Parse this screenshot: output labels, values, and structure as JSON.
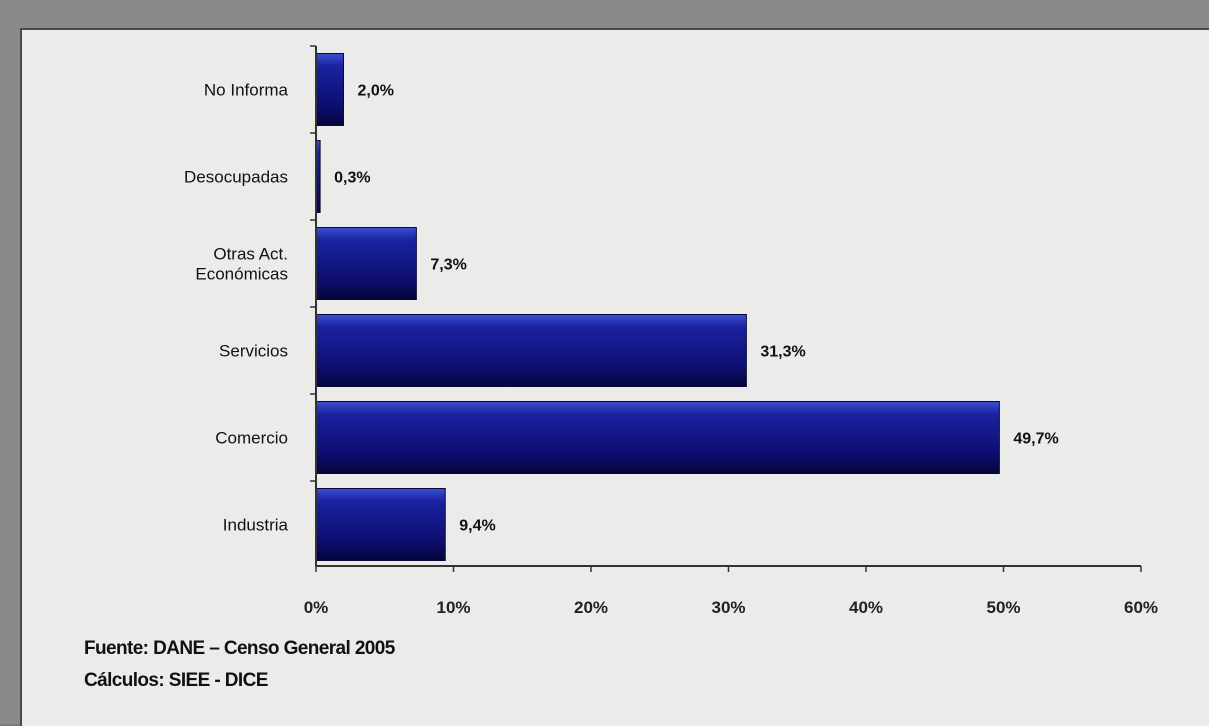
{
  "chart_data": {
    "type": "bar",
    "orientation": "horizontal",
    "categories": [
      "No Informa",
      "Desocupadas",
      "Otras Act. Económicas",
      "Servicios",
      "Comercio",
      "Industria"
    ],
    "category_lines": [
      [
        "No Informa"
      ],
      [
        "Desocupadas"
      ],
      [
        "Otras Act.",
        "Económicas"
      ],
      [
        "Servicios"
      ],
      [
        "Comercio"
      ],
      [
        "Industria"
      ]
    ],
    "values": [
      2.0,
      0.3,
      7.3,
      31.3,
      49.7,
      9.4
    ],
    "value_labels": [
      "2,0%",
      "0,3%",
      "7,3%",
      "31,3%",
      "49,7%",
      "9,4%"
    ],
    "xlim": [
      0,
      60
    ],
    "ticks": [
      0,
      10,
      20,
      30,
      40,
      50,
      60
    ],
    "tick_labels": [
      "0%",
      "10%",
      "20%",
      "30%",
      "40%",
      "50%",
      "60%"
    ],
    "title": "",
    "xlabel": "",
    "ylabel": "",
    "grid": false,
    "legend": "none",
    "bar_color": "#12127a"
  },
  "footer": {
    "source": "Fuente: DANE – Censo General 2005",
    "calc": "Cálculos: SIEE - DICE"
  }
}
